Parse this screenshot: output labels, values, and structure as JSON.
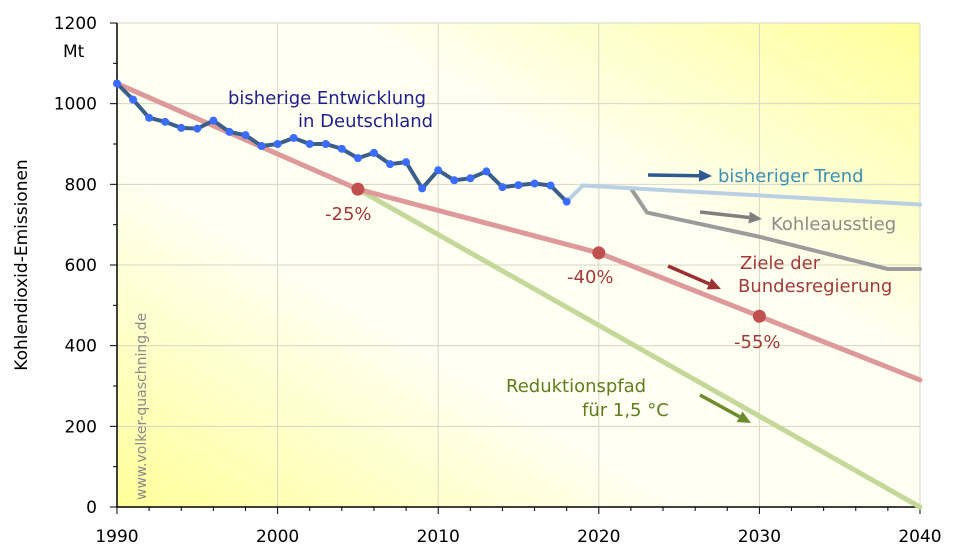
{
  "chart_data": {
    "type": "line",
    "ylabel": "Kohlendioxid-Emissionen",
    "unit_label": "Mt",
    "xlim": [
      1990,
      2040
    ],
    "ylim": [
      0,
      1200
    ],
    "x_ticks": [
      1990,
      2000,
      2010,
      2020,
      2030,
      2040
    ],
    "y_ticks": [
      0,
      200,
      400,
      600,
      800,
      1000,
      1200
    ],
    "x_tick_labels": [
      "1990",
      "2000",
      "2010",
      "2020",
      "2030",
      "2040"
    ],
    "y_tick_labels": [
      "0",
      "200",
      "400",
      "600",
      "800",
      "1000",
      "1200"
    ],
    "watermark": "www.volker-quaschning.de",
    "series": [
      {
        "key": "historical",
        "color": "#3a5f8a",
        "marker_color": "#3b6cff",
        "points": [
          [
            1990,
            1050
          ],
          [
            1991,
            1010
          ],
          [
            1992,
            965
          ],
          [
            1993,
            955
          ],
          [
            1994,
            940
          ],
          [
            1995,
            938
          ],
          [
            1996,
            958
          ],
          [
            1997,
            930
          ],
          [
            1998,
            922
          ],
          [
            1999,
            895
          ],
          [
            2000,
            900
          ],
          [
            2001,
            915
          ],
          [
            2002,
            900
          ],
          [
            2003,
            900
          ],
          [
            2004,
            888
          ],
          [
            2005,
            865
          ],
          [
            2006,
            878
          ],
          [
            2007,
            850
          ],
          [
            2008,
            855
          ],
          [
            2009,
            790
          ],
          [
            2010,
            835
          ],
          [
            2011,
            810
          ],
          [
            2012,
            815
          ],
          [
            2013,
            832
          ],
          [
            2014,
            793
          ],
          [
            2015,
            798
          ],
          [
            2016,
            802
          ],
          [
            2017,
            797
          ],
          [
            2018,
            757
          ]
        ]
      },
      {
        "key": "trend",
        "color": "#b9cfe3",
        "points": [
          [
            2018,
            757
          ],
          [
            2019,
            797
          ],
          [
            2040,
            750
          ]
        ]
      },
      {
        "key": "kohleausstieg",
        "color": "#9c9c9c",
        "points": [
          [
            2022,
            790
          ],
          [
            2023,
            730
          ],
          [
            2030,
            670
          ],
          [
            2038,
            590
          ],
          [
            2040,
            590
          ]
        ]
      },
      {
        "key": "ziele",
        "color": "#de9a9a",
        "points": [
          [
            1990,
            1050
          ],
          [
            2005,
            788
          ],
          [
            2020,
            630
          ],
          [
            2030,
            473
          ],
          [
            2040,
            315
          ]
        ],
        "milestones": [
          {
            "x": 2005,
            "y": 788,
            "label": "-25%"
          },
          {
            "x": 2020,
            "y": 630,
            "label": "-40%"
          },
          {
            "x": 2030,
            "y": 473,
            "label": "-55%"
          }
        ],
        "milestone_color": "#c0504d"
      },
      {
        "key": "reduktion",
        "color": "#c4d89a",
        "points": [
          [
            2005,
            788
          ],
          [
            2040,
            0
          ]
        ]
      }
    ],
    "annotations": [
      {
        "key": "hist1",
        "text": "bisherige Entwicklung",
        "color": "#1f1f8c"
      },
      {
        "key": "hist2",
        "text": "in Deutschland",
        "color": "#1f1f8c"
      },
      {
        "key": "trend",
        "text": "bisheriger Trend",
        "color": "#3a90b5",
        "arrow_color": "#2f5a8f"
      },
      {
        "key": "kohle",
        "text": "Kohleausstieg",
        "color": "#8c8c8c",
        "arrow_color": "#7f7f7f"
      },
      {
        "key": "ziele1",
        "text": "Ziele der",
        "color": "#a33a3a",
        "arrow_color": "#9c2f2f"
      },
      {
        "key": "ziele2",
        "text": "Bundesregierung",
        "color": "#a33a3a"
      },
      {
        "key": "red1",
        "text": "Reduktionspfad",
        "color": "#5f7d1e",
        "arrow_color": "#6b8c2a"
      },
      {
        "key": "red2",
        "text": "für 1,5 °C",
        "color": "#5f7d1e"
      }
    ]
  }
}
